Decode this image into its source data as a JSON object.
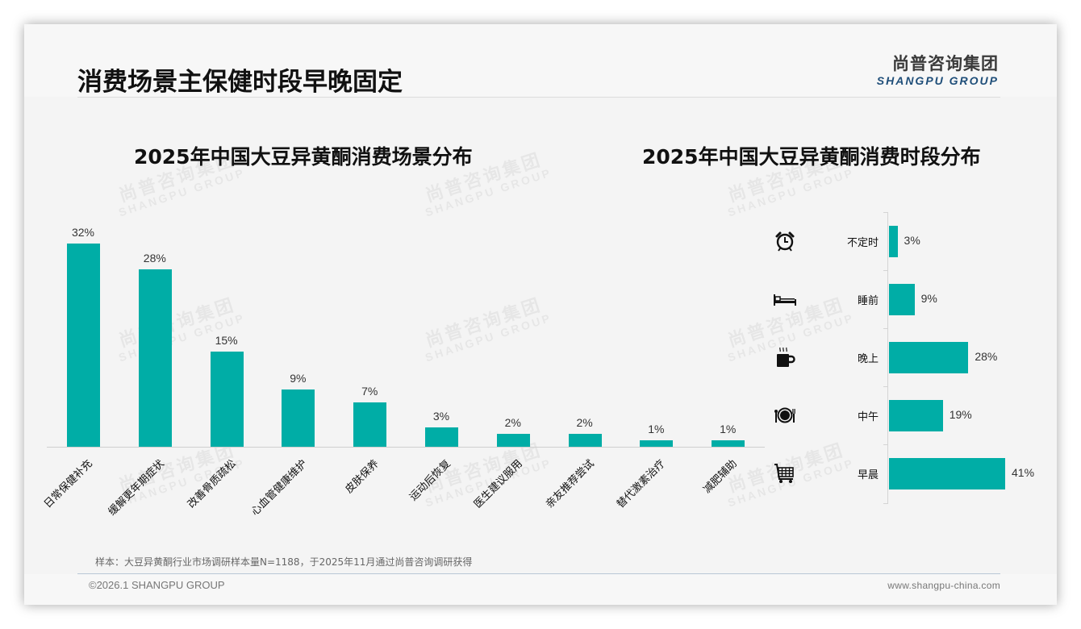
{
  "page": {
    "title": "消费场景主保健时段早晚固定",
    "logo_cn": "尚普咨询集团",
    "logo_en": "SHANGPU GROUP",
    "watermark_cn": "尚普咨询集团",
    "watermark_en": "SHANGPU GROUP",
    "footnote": "样本：大豆异黄酮行业市场调研样本量N=1188，于2025年11月通过尚普咨询调研获得",
    "copyright": "©2026.1 SHANGPU GROUP",
    "website": "www.shangpu-china.com",
    "accent_color": "#00ada6"
  },
  "chart_data": [
    {
      "type": "bar",
      "title": "2025年中国大豆异黄酮消费场景分布",
      "categories": [
        "日常保健补充",
        "缓解更年期症状",
        "改善骨质疏松",
        "心血管健康维护",
        "皮肤保养",
        "运动后恢复",
        "医生建议服用",
        "亲友推荐尝试",
        "替代激素治疗",
        "减肥辅助"
      ],
      "values": [
        32,
        28,
        15,
        9,
        7,
        3,
        2,
        2,
        1,
        1
      ],
      "labels": [
        "32%",
        "28%",
        "15%",
        "9%",
        "7%",
        "3%",
        "2%",
        "2%",
        "1%",
        "1%"
      ],
      "xlabel": "",
      "ylabel": "",
      "ylim": [
        0,
        35
      ],
      "unit": "%",
      "grid": false,
      "color": "#00ada6"
    },
    {
      "type": "bar",
      "orientation": "horizontal",
      "title": "2025年中国大豆异黄酮消费时段分布",
      "categories": [
        "不定时",
        "睡前",
        "晚上",
        "中午",
        "早晨"
      ],
      "values": [
        3,
        9,
        28,
        19,
        41
      ],
      "labels": [
        "3%",
        "9%",
        "28%",
        "19%",
        "41%"
      ],
      "icons": [
        "alarm-clock-icon",
        "bed-icon",
        "hot-cup-icon",
        "plate-cutlery-icon",
        "shopping-cart-icon"
      ],
      "xlabel": "",
      "ylabel": "",
      "xlim": [
        0,
        45
      ],
      "unit": "%",
      "grid": false,
      "color": "#00ada6"
    }
  ]
}
